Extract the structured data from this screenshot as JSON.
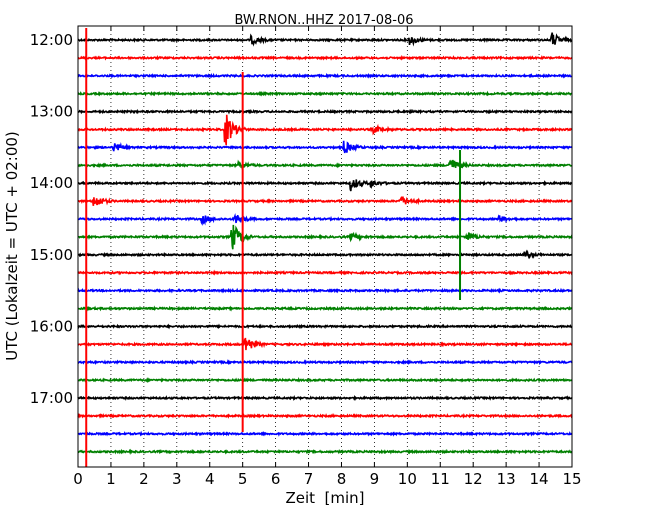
{
  "chart_data": {
    "type": "line",
    "subtype": "helicorder",
    "title": "BW.RNON..HHZ 2017-08-06",
    "xlabel": "Zeit  [min]",
    "ylabel": "UTC (Lokalzeit = UTC + 02:00)",
    "xlim": [
      0,
      15
    ],
    "x_ticks": [
      0,
      1,
      2,
      3,
      4,
      5,
      6,
      7,
      8,
      9,
      10,
      11,
      12,
      13,
      14,
      15
    ],
    "y_tick_labels": [
      "12:00",
      "13:00",
      "14:00",
      "15:00",
      "16:00",
      "17:00"
    ],
    "y_tick_rows": [
      0,
      4,
      8,
      12,
      16,
      20
    ],
    "row_interval_minutes": 15,
    "start_time": "12:00",
    "rows": 24,
    "grid": true,
    "colors": [
      "#000000",
      "#ff0000",
      "#0000ff",
      "#008000"
    ],
    "vertical_markers": [
      {
        "x": 0.25,
        "color": "#ff0000"
      },
      {
        "x": 5.0,
        "color": "#ff0000"
      },
      {
        "x": 11.6,
        "color": "#008000"
      }
    ],
    "events": [
      {
        "row": 0,
        "x": 5.3,
        "amp": 0.4
      },
      {
        "row": 0,
        "x": 10.1,
        "amp": 0.5
      },
      {
        "row": 0,
        "x": 14.4,
        "amp": 0.8
      },
      {
        "row": 5,
        "x": 4.5,
        "amp": 1.8
      },
      {
        "row": 5,
        "x": 9.0,
        "amp": 0.35
      },
      {
        "row": 6,
        "x": 1.1,
        "amp": 0.5
      },
      {
        "row": 6,
        "x": 8.1,
        "amp": 0.7
      },
      {
        "row": 7,
        "x": 4.9,
        "amp": 0.35
      },
      {
        "row": 7,
        "x": 11.3,
        "amp": 0.9
      },
      {
        "row": 8,
        "x": 8.3,
        "amp": 0.8
      },
      {
        "row": 8,
        "x": 8.9,
        "amp": 0.4
      },
      {
        "row": 9,
        "x": 0.5,
        "amp": 0.7
      },
      {
        "row": 9,
        "x": 9.8,
        "amp": 0.6
      },
      {
        "row": 10,
        "x": 3.8,
        "amp": 0.45
      },
      {
        "row": 10,
        "x": 4.8,
        "amp": 0.5
      },
      {
        "row": 10,
        "x": 12.8,
        "amp": 0.35
      },
      {
        "row": 11,
        "x": 4.7,
        "amp": 1.5
      },
      {
        "row": 11,
        "x": 8.3,
        "amp": 0.35
      },
      {
        "row": 11,
        "x": 11.8,
        "amp": 0.6
      },
      {
        "row": 12,
        "x": 13.6,
        "amp": 0.3
      },
      {
        "row": 17,
        "x": 5.1,
        "amp": 1.0
      }
    ]
  }
}
